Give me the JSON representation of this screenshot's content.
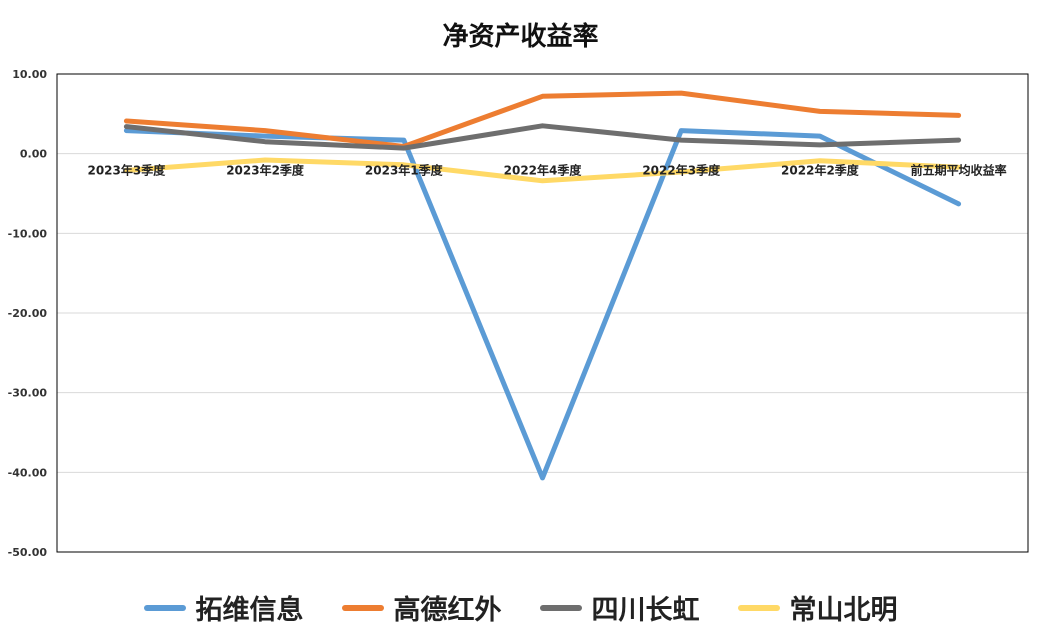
{
  "chart_data": {
    "type": "line",
    "title": "净资产收益率",
    "categories": [
      "2023年3季度",
      "2023年2季度",
      "2023年1季度",
      "2022年4季度",
      "2022年3季度",
      "2022年2季度",
      "前五期平均收益率"
    ],
    "series": [
      {
        "name": "拓维信息",
        "color": "#5B9BD5",
        "values": [
          2.9,
          2.2,
          1.7,
          -40.7,
          2.9,
          2.2,
          -6.3
        ]
      },
      {
        "name": "高德红外",
        "color": "#ED7D31",
        "values": [
          4.1,
          2.9,
          0.9,
          7.2,
          7.6,
          5.3,
          4.8
        ]
      },
      {
        "name": "四川长虹",
        "color": "#6E6E6E",
        "values": [
          3.4,
          1.5,
          0.7,
          3.5,
          1.7,
          1.1,
          1.7
        ]
      },
      {
        "name": "常山北明",
        "color": "#FFD966",
        "values": [
          -2.1,
          -0.8,
          -1.4,
          -3.4,
          -2.3,
          -0.9,
          -1.7
        ]
      }
    ],
    "ylim": [
      -50,
      10
    ],
    "yticks": [
      10,
      0,
      -10,
      -20,
      -30,
      -40,
      -50
    ],
    "ytick_labels": [
      "10.00",
      "0.00",
      "-10.00",
      "-20.00",
      "-30.00",
      "-40.00",
      "-50.00"
    ],
    "grid": true,
    "legend_position": "bottom"
  }
}
